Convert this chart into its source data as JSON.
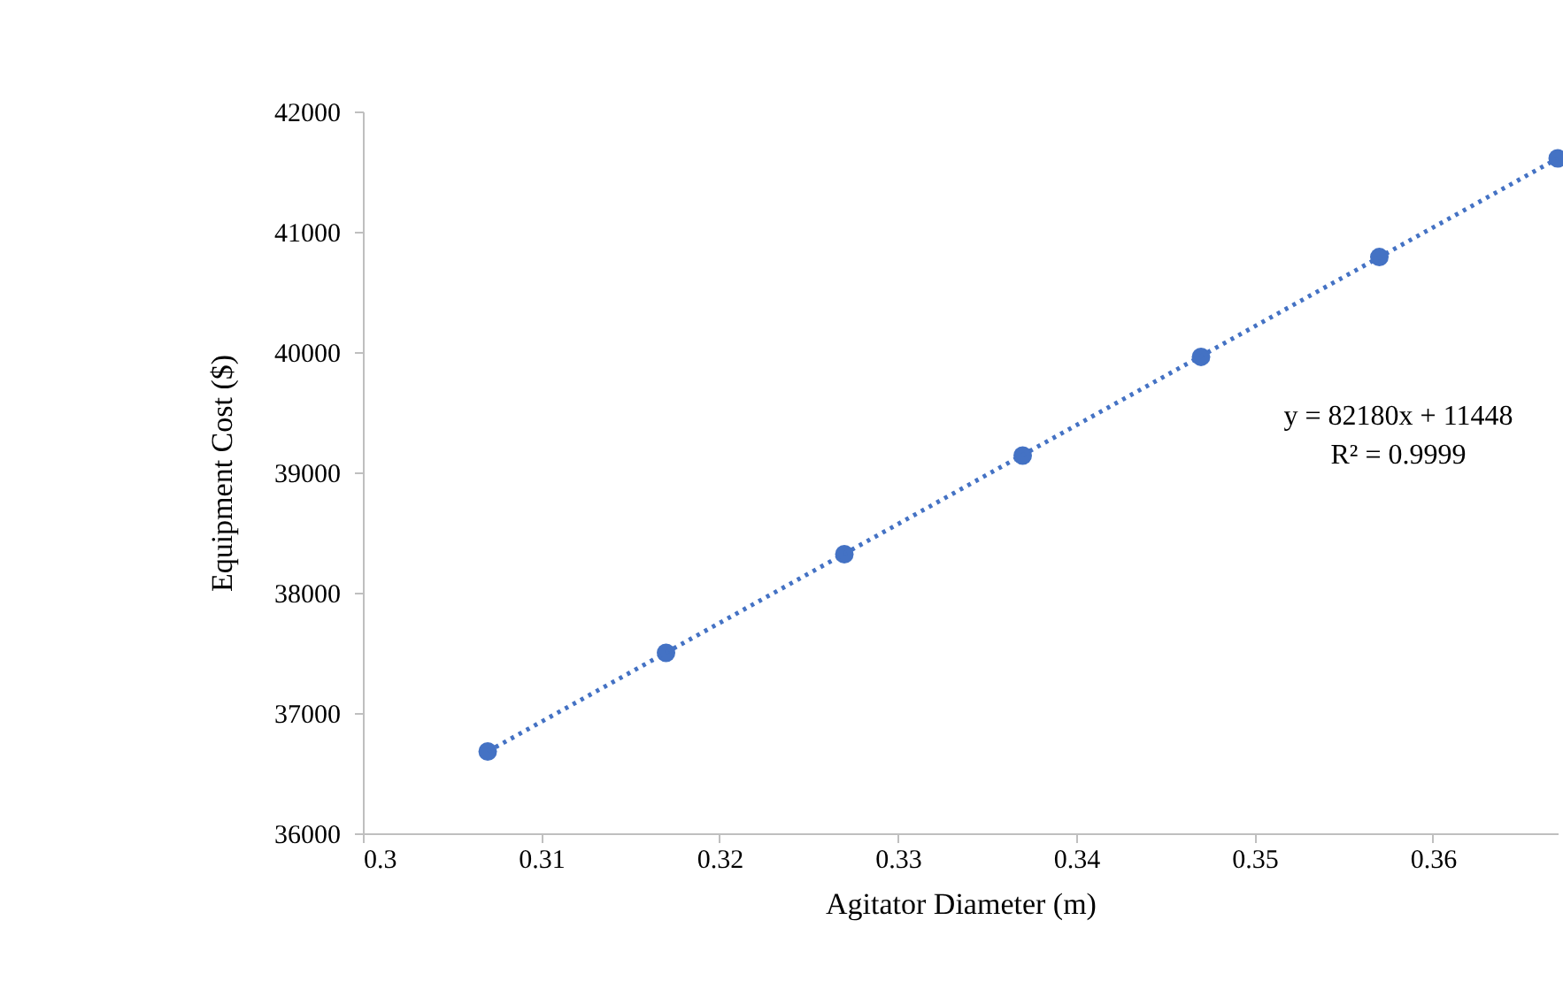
{
  "chart_data": {
    "type": "scatter",
    "xlabel": "Agitator Diameter (m)",
    "ylabel": "Equipment Cost ($)",
    "x": [
      0.307,
      0.317,
      0.327,
      0.337,
      0.347,
      0.357,
      0.367
    ],
    "series": [
      {
        "color": "#4472c4",
        "values": [
          36680,
          37500,
          38320,
          39140,
          39960,
          40790,
          41610
        ]
      },
      {
        "type": "line",
        "color": "#4472c4",
        "line_style": "dotted",
        "marker": "none",
        "x": [
          0.307,
          0.367
        ],
        "values": [
          36680,
          41610
        ]
      }
    ],
    "marker": "circle",
    "grid": false,
    "xlim": [
      0.3,
      0.367
    ],
    "xticks": [
      0.3,
      0.31,
      0.32,
      0.33,
      0.34,
      0.35,
      0.36
    ],
    "ylim": [
      36000,
      42000
    ],
    "yticks": [
      36000,
      37000,
      38000,
      39000,
      40000,
      41000,
      42000
    ],
    "annotations": [
      "y = 82180x + 11448",
      "R² = 0.9999"
    ]
  }
}
